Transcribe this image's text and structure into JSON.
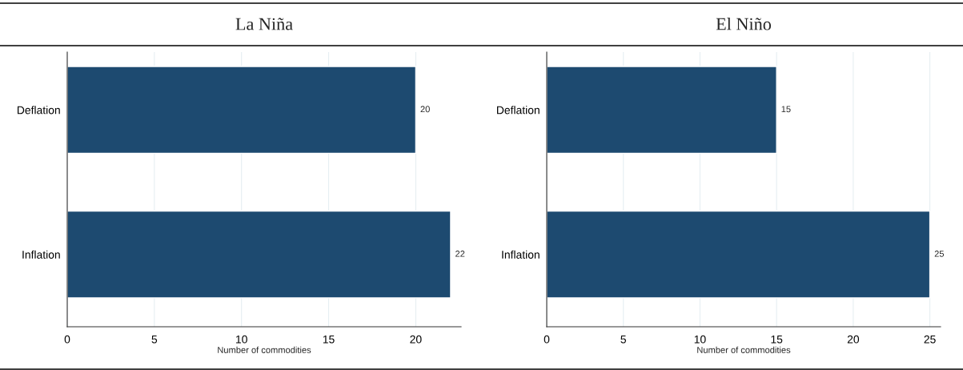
{
  "chart_data": [
    {
      "type": "bar",
      "orientation": "horizontal",
      "title": "La Niña",
      "xlabel": "Number of commodities",
      "categories": [
        "Deflation",
        "Inflation"
      ],
      "values": [
        20,
        22
      ],
      "color": "#1d4a70",
      "xlim": [
        0,
        22.6
      ],
      "xticks": [
        0,
        5,
        10,
        15,
        20
      ],
      "grid": "x",
      "data_labels": true
    },
    {
      "type": "bar",
      "orientation": "horizontal",
      "title": "El Niño",
      "xlabel": "Number of commodities",
      "categories": [
        "Deflation",
        "Inflation"
      ],
      "values": [
        15,
        25
      ],
      "color": "#1d4a70",
      "xlim": [
        0,
        25.7
      ],
      "xticks": [
        0,
        5,
        10,
        15,
        20,
        25
      ],
      "grid": "x",
      "data_labels": true
    }
  ]
}
